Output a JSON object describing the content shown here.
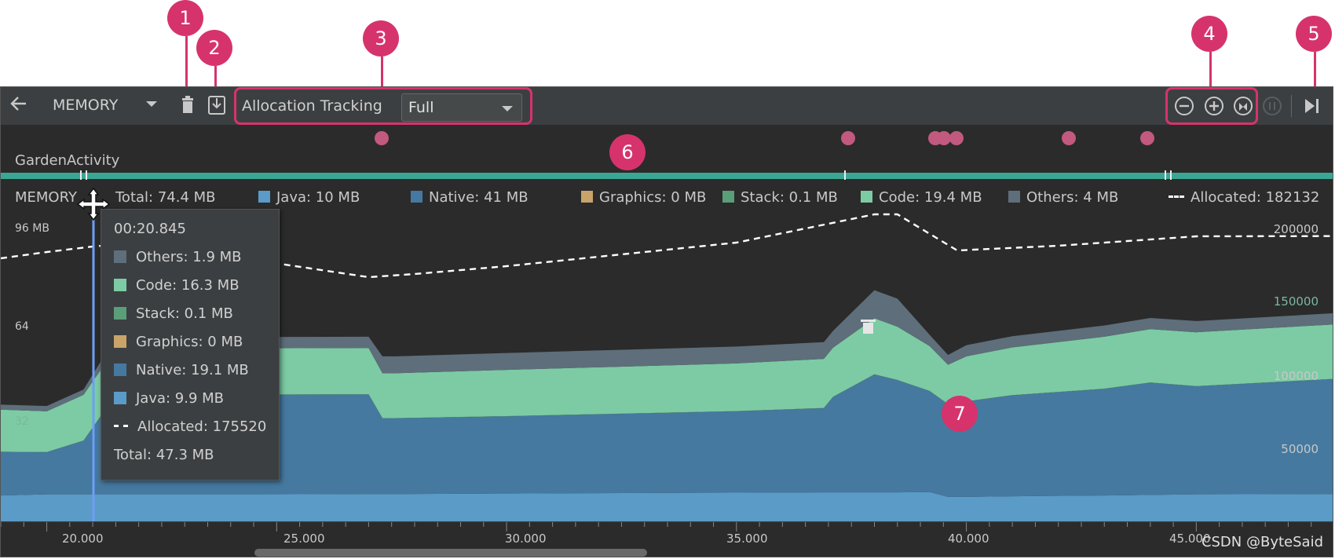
{
  "toolbar": {
    "back_icon": "arrow-left-icon",
    "profiler_label": "MEMORY",
    "dropdown_icon": "caret-down-icon",
    "gc_icon": "trash-icon",
    "dump_icon": "download-icon",
    "allocation_label": "Allocation Tracking",
    "allocation_value": "Full",
    "zoom_out_icon": "zoom-out-icon",
    "zoom_in_icon": "zoom-in-icon",
    "reset_zoom_icon": "reset-zoom-icon",
    "live_icon": "attach-live-icon"
  },
  "badges": [
    "1",
    "2",
    "3",
    "4",
    "5",
    "6",
    "7"
  ],
  "activity": {
    "name": "GardenActivity"
  },
  "legend": {
    "title": "MEMORY",
    "total": "Total: 74.4 MB",
    "java": "Java: 10 MB",
    "native": "Native: 41 MB",
    "graphics": "Graphics: 0 MB",
    "stack": "Stack: 0.1 MB",
    "code": "Code: 19.4 MB",
    "others": "Others: 4 MB",
    "allocated": "Allocated: 182132"
  },
  "axis_left": [
    "96 MB",
    "64",
    "32"
  ],
  "axis_right": [
    "200000",
    "150000",
    "100000",
    "50000"
  ],
  "time_labels": [
    "20.000",
    "25.000",
    "30.000",
    "35.000",
    "40.000",
    "45.000"
  ],
  "tooltip": {
    "time": "00:20.845",
    "others": "Others: 1.9 MB",
    "code": "Code: 16.3 MB",
    "stack": "Stack: 0.1 MB",
    "graphics": "Graphics: 0 MB",
    "native": "Native: 19.1 MB",
    "java": "Java: 9.9 MB",
    "allocated": "Allocated: 175520",
    "total": "Total: 47.3 MB"
  },
  "watermark": "CSDN @ByteSaid",
  "colors": {
    "java": "#5a9bc7",
    "native": "#4579a0",
    "graphics": "#c8a46a",
    "stack": "#5a9e7a",
    "code": "#7ccba4",
    "others": "#5e6e7a",
    "accent": "#d6336c",
    "activity": "#3aa794"
  },
  "chart_data": {
    "type": "area",
    "x_label": "",
    "xlim": [
      19,
      48
    ],
    "ylim_left_mb": [
      0,
      112
    ],
    "ylim_right": [
      0,
      200000
    ],
    "x": [
      19.0,
      20.0,
      20.8,
      21.5,
      24.5,
      27.0,
      27.3,
      27.6,
      30.0,
      35.0,
      36.9,
      37.1,
      38.0,
      38.5,
      39.2,
      39.6,
      40.0,
      41.0,
      43.0,
      44.0,
      45.0,
      48.0
    ],
    "series": [
      {
        "name": "Java",
        "values": [
          9.5,
          9.9,
          9.9,
          9.9,
          9.9,
          10.0,
          10.0,
          10.0,
          10.2,
          10.5,
          10.6,
          10.6,
          10.6,
          10.6,
          10.7,
          9.0,
          9.0,
          9.2,
          9.5,
          9.7,
          9.9,
          10.0
        ]
      },
      {
        "name": "Native",
        "values": [
          15.5,
          15.0,
          19.1,
          35.5,
          35.5,
          35.5,
          27.0,
          27.0,
          27.5,
          29.0,
          30.0,
          34.0,
          42.0,
          40.0,
          36.0,
          33.0,
          34.0,
          36.0,
          38.0,
          40.0,
          38.5,
          41.0
        ]
      },
      {
        "name": "Graphics",
        "values": [
          0,
          0,
          0,
          0,
          0,
          0,
          0,
          0,
          0,
          0,
          0,
          0,
          0,
          0,
          0,
          0,
          0,
          0,
          0,
          0,
          0,
          0
        ]
      },
      {
        "name": "Stack",
        "values": [
          0.1,
          0.1,
          0.1,
          0.1,
          0.1,
          0.1,
          0.1,
          0.1,
          0.1,
          0.1,
          0.1,
          0.1,
          0.1,
          0.1,
          0.1,
          0.1,
          0.1,
          0.1,
          0.1,
          0.1,
          0.1,
          0.1
        ]
      },
      {
        "name": "Code",
        "values": [
          15.0,
          14.5,
          16.3,
          16.5,
          16.5,
          16.5,
          16.0,
          16.0,
          16.5,
          17.0,
          17.5,
          17.5,
          20.0,
          19.0,
          16.0,
          14.0,
          16.0,
          17.0,
          18.5,
          19.0,
          19.2,
          19.4
        ]
      },
      {
        "name": "Others",
        "values": [
          1.8,
          1.9,
          1.9,
          4.0,
          4.0,
          4.0,
          6.0,
          6.0,
          6.0,
          6.0,
          6.0,
          6.0,
          10.0,
          10.0,
          4.0,
          3.5,
          4.0,
          4.0,
          4.0,
          4.0,
          4.0,
          4.0
        ]
      }
    ],
    "allocated": {
      "name": "Allocated",
      "x": [
        19.0,
        20.0,
        21.0,
        22.0,
        27.0,
        28.0,
        30.0,
        35.0,
        38.0,
        38.5,
        39.8,
        42.0,
        45.0,
        48.0
      ],
      "values": [
        168000,
        172000,
        175520,
        178000,
        156000,
        158000,
        163000,
        178000,
        196000,
        196000,
        173000,
        176000,
        182000,
        182132
      ]
    },
    "legend": "top"
  }
}
